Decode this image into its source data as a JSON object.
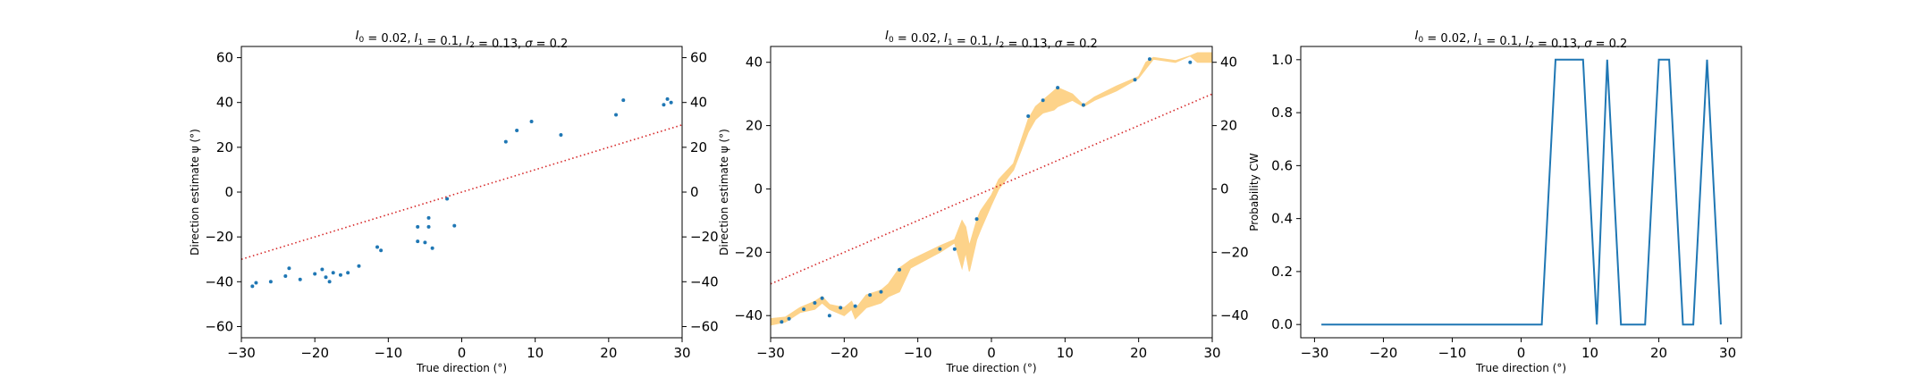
{
  "chart_data": [
    {
      "type": "scatter",
      "title": "I_0 = 0.02, I_1 = 0.1, I_2 = 0.13, σ = 0.2",
      "title_parts": {
        "l0": "0.02",
        "l1": "0.1",
        "l2": "0.13",
        "sigma": "0.2"
      },
      "xlabel": "True direction (°)",
      "ylabel": "Direction estimate ψ (°)",
      "xlim": [
        -30,
        30
      ],
      "ylim": [
        -65,
        65
      ],
      "xticks": [
        -30,
        -20,
        -10,
        0,
        10,
        20,
        30
      ],
      "yticks": [
        -60,
        -40,
        -20,
        0,
        20,
        40,
        60
      ],
      "right_axis_ticks": true,
      "grid": false,
      "series": [
        {
          "kind": "points",
          "color": "#1f77b4",
          "points": [
            [
              -28.5,
              -42
            ],
            [
              -28,
              -40.5
            ],
            [
              -26,
              -40
            ],
            [
              -24,
              -37.5
            ],
            [
              -23.5,
              -34
            ],
            [
              -22,
              -39
            ],
            [
              -20,
              -36.5
            ],
            [
              -19,
              -34.5
            ],
            [
              -18.5,
              -38
            ],
            [
              -18,
              -40
            ],
            [
              -17.5,
              -36
            ],
            [
              -16.5,
              -37
            ],
            [
              -15.5,
              -36
            ],
            [
              -14,
              -33
            ],
            [
              -11.5,
              -24.5
            ],
            [
              -11,
              -26
            ],
            [
              -6,
              -15.5
            ],
            [
              -6,
              -22
            ],
            [
              -5,
              -22.5
            ],
            [
              -4.5,
              -11.5
            ],
            [
              -4.5,
              -15.5
            ],
            [
              -4,
              -25
            ],
            [
              -2,
              -3
            ],
            [
              -1,
              -15
            ],
            [
              6,
              22.5
            ],
            [
              7.5,
              27.5
            ],
            [
              9.5,
              31.5
            ],
            [
              13.5,
              25.5
            ],
            [
              21,
              34.5
            ],
            [
              22,
              41
            ],
            [
              27.5,
              39
            ],
            [
              28,
              41.5
            ],
            [
              28.5,
              40
            ]
          ]
        },
        {
          "kind": "reference-line",
          "color": "#d62728",
          "dash": "dotted",
          "points": [
            [
              -30,
              -30
            ],
            [
              30,
              30
            ]
          ]
        }
      ]
    },
    {
      "type": "line",
      "title": "I_0 = 0.02, I_1 = 0.1, I_2 = 0.13, σ = 0.2",
      "title_parts": {
        "l0": "0.02",
        "l1": "0.1",
        "l2": "0.13",
        "sigma": "0.2"
      },
      "xlabel": "True direction (°)",
      "ylabel": "Direction estimate ψ (°)",
      "xlim": [
        -30,
        30
      ],
      "ylim": [
        -47,
        45
      ],
      "xticks": [
        -30,
        -20,
        -10,
        0,
        10,
        20,
        30
      ],
      "yticks": [
        -40,
        -20,
        0,
        20,
        40
      ],
      "right_axis_ticks": true,
      "grid": false,
      "series": [
        {
          "kind": "band",
          "color": "#fdd38a",
          "x": [
            -30,
            -28,
            -26,
            -24,
            -23,
            -22,
            -20,
            -19,
            -18.5,
            -17,
            -15,
            -14,
            -12.5,
            -11,
            -7,
            -5,
            -4,
            -3.5,
            -3,
            -2,
            -1.5,
            0,
            1,
            3,
            5,
            6,
            7,
            8.5,
            9,
            11,
            12.5,
            14,
            17,
            20,
            21,
            22,
            25,
            27,
            28,
            30
          ],
          "lower": [
            -43,
            -42,
            -39,
            -38,
            -36,
            -38,
            -40,
            -38,
            -41,
            -37.5,
            -36,
            -34,
            -32.5,
            -25,
            -20,
            -17,
            -25,
            -20,
            -26,
            -16,
            -13,
            -5,
            0,
            6,
            18,
            22,
            24,
            25,
            26,
            28,
            26,
            28,
            31,
            35,
            38,
            41,
            40,
            42,
            40,
            40
          ],
          "upper": [
            -41,
            -40.5,
            -37.5,
            -35.5,
            -34,
            -36.5,
            -37.5,
            -35.5,
            -38,
            -33.5,
            -32,
            -30,
            -25,
            -22.5,
            -18,
            -16,
            -10,
            -12,
            -18,
            -10,
            -7,
            -2,
            3,
            8,
            22,
            26,
            28,
            31,
            32,
            30,
            26.5,
            29,
            32.5,
            35.5,
            40,
            41.5,
            40.5,
            42,
            43,
            43
          ]
        },
        {
          "kind": "points",
          "color": "#1f77b4",
          "points": [
            [
              -28.5,
              -42
            ],
            [
              -27.5,
              -41
            ],
            [
              -25.5,
              -38
            ],
            [
              -24,
              -36
            ],
            [
              -23,
              -34.5
            ],
            [
              -22,
              -40
            ],
            [
              -20.5,
              -37.5
            ],
            [
              -18.5,
              -37
            ],
            [
              -16.5,
              -33.5
            ],
            [
              -15,
              -32.5
            ],
            [
              -12.5,
              -25.5
            ],
            [
              -7,
              -19
            ],
            [
              -5,
              -19
            ],
            [
              -2,
              -9.5
            ],
            [
              5,
              23
            ],
            [
              7,
              28
            ],
            [
              9,
              32
            ],
            [
              12.5,
              26.5
            ],
            [
              19.5,
              34.5
            ],
            [
              21.5,
              41
            ],
            [
              27,
              40
            ]
          ]
        },
        {
          "kind": "reference-line",
          "color": "#d62728",
          "dash": "dotted",
          "points": [
            [
              -30,
              -30
            ],
            [
              30,
              30
            ]
          ]
        }
      ]
    },
    {
      "type": "line",
      "title": "I_0 = 0.02, I_1 = 0.1, I_2 = 0.13, σ = 0.2",
      "title_parts": {
        "l0": "0.02",
        "l1": "0.1",
        "l2": "0.13",
        "sigma": "0.2"
      },
      "xlabel": "True direction (°)",
      "ylabel": "Probability CW",
      "xlim": [
        -32,
        32
      ],
      "ylim": [
        -0.05,
        1.05
      ],
      "xticks": [
        -30,
        -20,
        -10,
        0,
        10,
        20,
        30
      ],
      "yticks": [
        0.0,
        0.2,
        0.4,
        0.6,
        0.8,
        1.0
      ],
      "ytick_labels": [
        "0.0",
        "0.2",
        "0.4",
        "0.6",
        "0.8",
        "1.0"
      ],
      "right_axis_ticks": false,
      "grid": false,
      "series": [
        {
          "kind": "line",
          "color": "#1f77b4",
          "x": [
            -29,
            3,
            5,
            9,
            11,
            12.5,
            14.5,
            18,
            20,
            21.5,
            23.5,
            25,
            27,
            29
          ],
          "y": [
            0,
            0,
            1,
            1,
            0,
            1,
            0,
            0,
            1,
            1,
            0,
            0,
            1,
            0
          ]
        }
      ]
    }
  ]
}
